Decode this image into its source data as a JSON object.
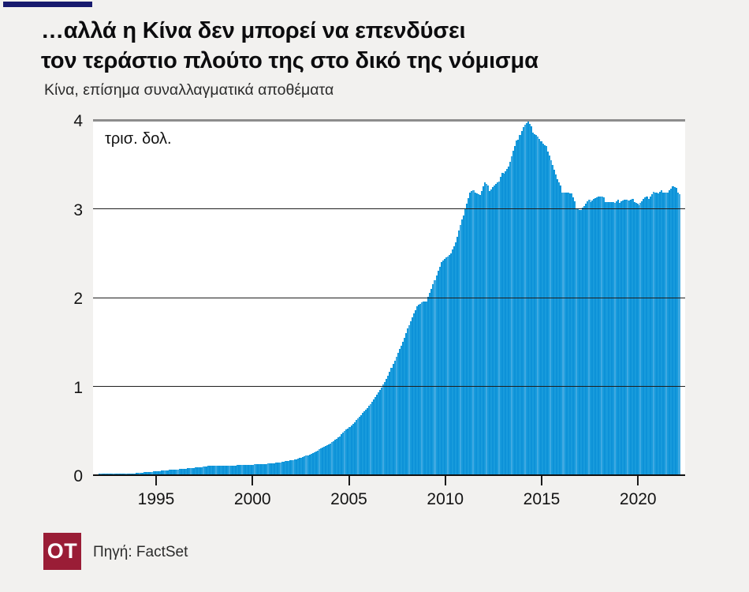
{
  "page": {
    "background": "#f2f1ef",
    "plot_background": "#ffffff"
  },
  "header": {
    "accent_bar_color": "#181a6e",
    "title_line1": "…αλλά η Κίνα δεν μπορεί να επενδύσει",
    "title_line2": "τον τεράστιο πλούτο της στο δικό της νόμισμα",
    "subtitle": "Κίνα, επίσημα συναλλαγματικά αποθέματα"
  },
  "chart_data": {
    "type": "bar",
    "title": "Κίνα, επίσημα συναλλαγματικά αποθέματα",
    "unit_label": "τρισ. δολ.",
    "xlabel": "",
    "ylabel": "",
    "ylim": [
      0,
      4
    ],
    "y_ticks": [
      0,
      1,
      2,
      3,
      4
    ],
    "x_ticks": [
      1995,
      2000,
      2005,
      2010,
      2015,
      2020
    ],
    "x_range": [
      1992,
      2022.2
    ],
    "grid": "on",
    "legend": "none",
    "bar_color": "#189bdc",
    "bar_color_light": "#3fa9e2",
    "bar_color_dark": "#0d92d8",
    "gridline_color": "#1f1f1f",
    "top_rule_color": "#8d8d8d",
    "series": [
      {
        "name": "Επίσημα συναλλαγματικά αποθέματα Κίνας (τρισ. δολ.)",
        "start_year": 1992,
        "points_per_year": 4,
        "values": [
          0.015,
          0.015,
          0.015,
          0.015,
          0.015,
          0.016,
          0.017,
          0.018,
          0.025,
          0.03,
          0.035,
          0.04,
          0.045,
          0.05,
          0.055,
          0.06,
          0.065,
          0.07,
          0.075,
          0.08,
          0.085,
          0.09,
          0.1,
          0.105,
          0.105,
          0.105,
          0.107,
          0.11,
          0.11,
          0.112,
          0.115,
          0.118,
          0.12,
          0.122,
          0.125,
          0.13,
          0.135,
          0.14,
          0.15,
          0.16,
          0.17,
          0.18,
          0.2,
          0.22,
          0.24,
          0.27,
          0.3,
          0.33,
          0.36,
          0.4,
          0.44,
          0.5,
          0.54,
          0.6,
          0.66,
          0.72,
          0.78,
          0.85,
          0.93,
          1.02,
          1.12,
          1.25,
          1.38,
          1.5,
          1.65,
          1.78,
          1.9,
          1.95,
          1.96,
          2.1,
          2.25,
          2.4,
          2.45,
          2.5,
          2.62,
          2.82,
          3.0,
          3.17,
          3.2,
          3.16,
          3.29,
          3.22,
          3.27,
          3.3,
          3.42,
          3.48,
          3.64,
          3.8,
          3.93,
          3.97,
          3.88,
          3.82,
          3.72,
          3.67,
          3.5,
          3.32,
          3.2,
          3.19,
          3.16,
          3.02,
          2.99,
          3.05,
          3.1,
          3.13,
          3.13,
          3.1,
          3.08,
          3.06,
          3.09,
          3.11,
          3.08,
          3.1,
          3.05,
          3.1,
          3.13,
          3.2,
          3.16,
          3.2,
          3.19,
          3.24,
          3.2,
          3.14
        ]
      }
    ]
  },
  "footer": {
    "logo_text": "OT",
    "logo_bg": "#9a1d36",
    "source": "Πηγή: FactSet"
  }
}
